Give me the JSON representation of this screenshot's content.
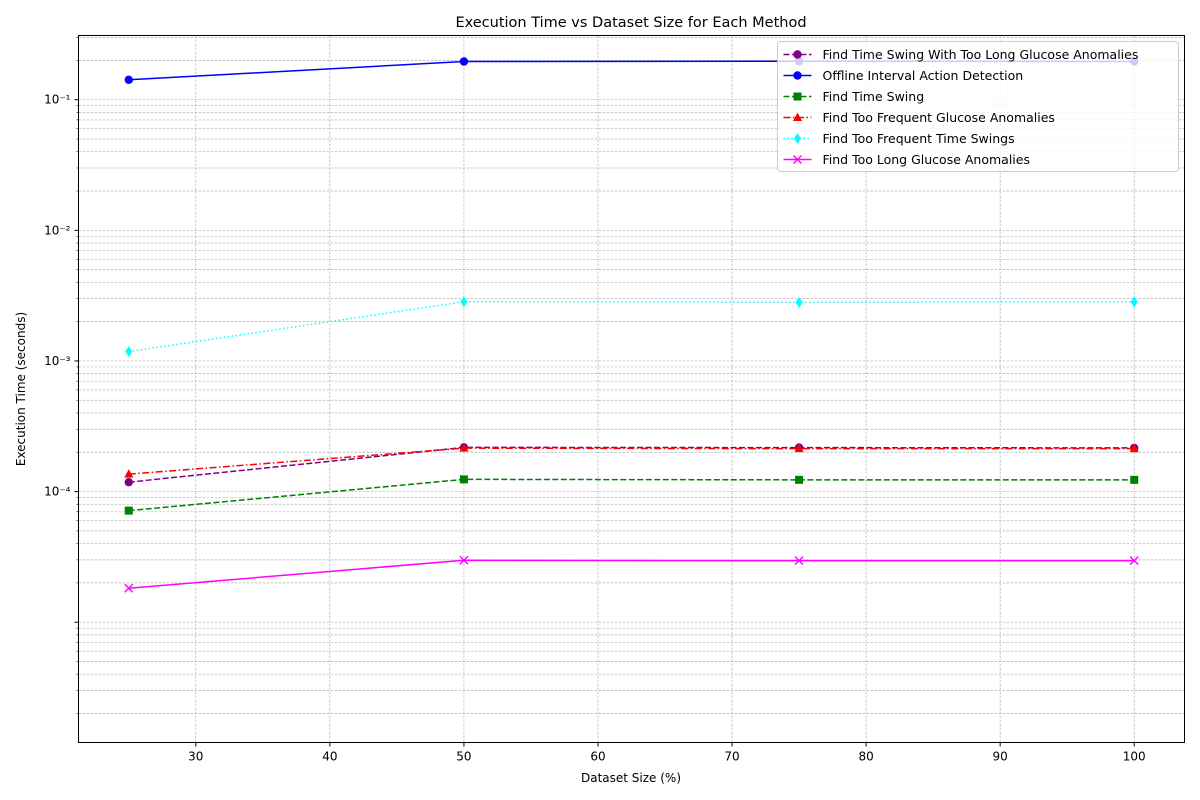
{
  "chart_data": {
    "type": "line",
    "title": "Execution Time vs Dataset Size for Each Method",
    "xlabel": "Dataset Size (%)",
    "ylabel": "Execution Time (seconds)",
    "xlim": [
      21.25,
      103.75
    ],
    "ylim": [
      1.2e-06,
      0.31
    ],
    "yscale": "log",
    "xticks": [
      30,
      40,
      50,
      60,
      70,
      80,
      90,
      100
    ],
    "yticks": [
      {
        "value": 0.1,
        "label": "10⁻¹"
      },
      {
        "value": 0.01,
        "label": "10⁻²"
      },
      {
        "value": 0.001,
        "label": "10⁻³"
      },
      {
        "value": 0.0001,
        "label": "10⁻⁴"
      }
    ],
    "grid": true,
    "legend_position": "top-right",
    "x": [
      25,
      50,
      75,
      100
    ],
    "series": [
      {
        "name": "Find Time Swing With Too Long Glucose Anomalies",
        "values": [
          0.000118,
          0.000218,
          0.000217,
          0.000216
        ],
        "color": "#800080",
        "dash": "dashed",
        "marker": "circle"
      },
      {
        "name": "Offline Interval Action Detection",
        "values": [
          0.142,
          0.196,
          0.197,
          0.196
        ],
        "color": "#0000ff",
        "dash": "solid",
        "marker": "circle"
      },
      {
        "name": "Find Time Swing",
        "values": [
          7.15e-05,
          0.000124,
          0.000123,
          0.000123
        ],
        "color": "#008000",
        "dash": "dashed",
        "marker": "square"
      },
      {
        "name": "Find Too Frequent Glucose Anomalies",
        "values": [
          0.000136,
          0.000215,
          0.000213,
          0.000213
        ],
        "color": "#ff0000",
        "dash": "dashdot",
        "marker": "triangle"
      },
      {
        "name": "Find Too Frequent Time Swings",
        "values": [
          0.00118,
          0.00284,
          0.00281,
          0.00283
        ],
        "color": "#00ffff",
        "dash": "dotted",
        "marker": "diamond"
      },
      {
        "name": "Find Too Long Glucose Anomalies",
        "values": [
          1.82e-05,
          2.98e-05,
          2.96e-05,
          2.96e-05
        ],
        "color": "#ff00ff",
        "dash": "solid",
        "marker": "x"
      }
    ]
  }
}
